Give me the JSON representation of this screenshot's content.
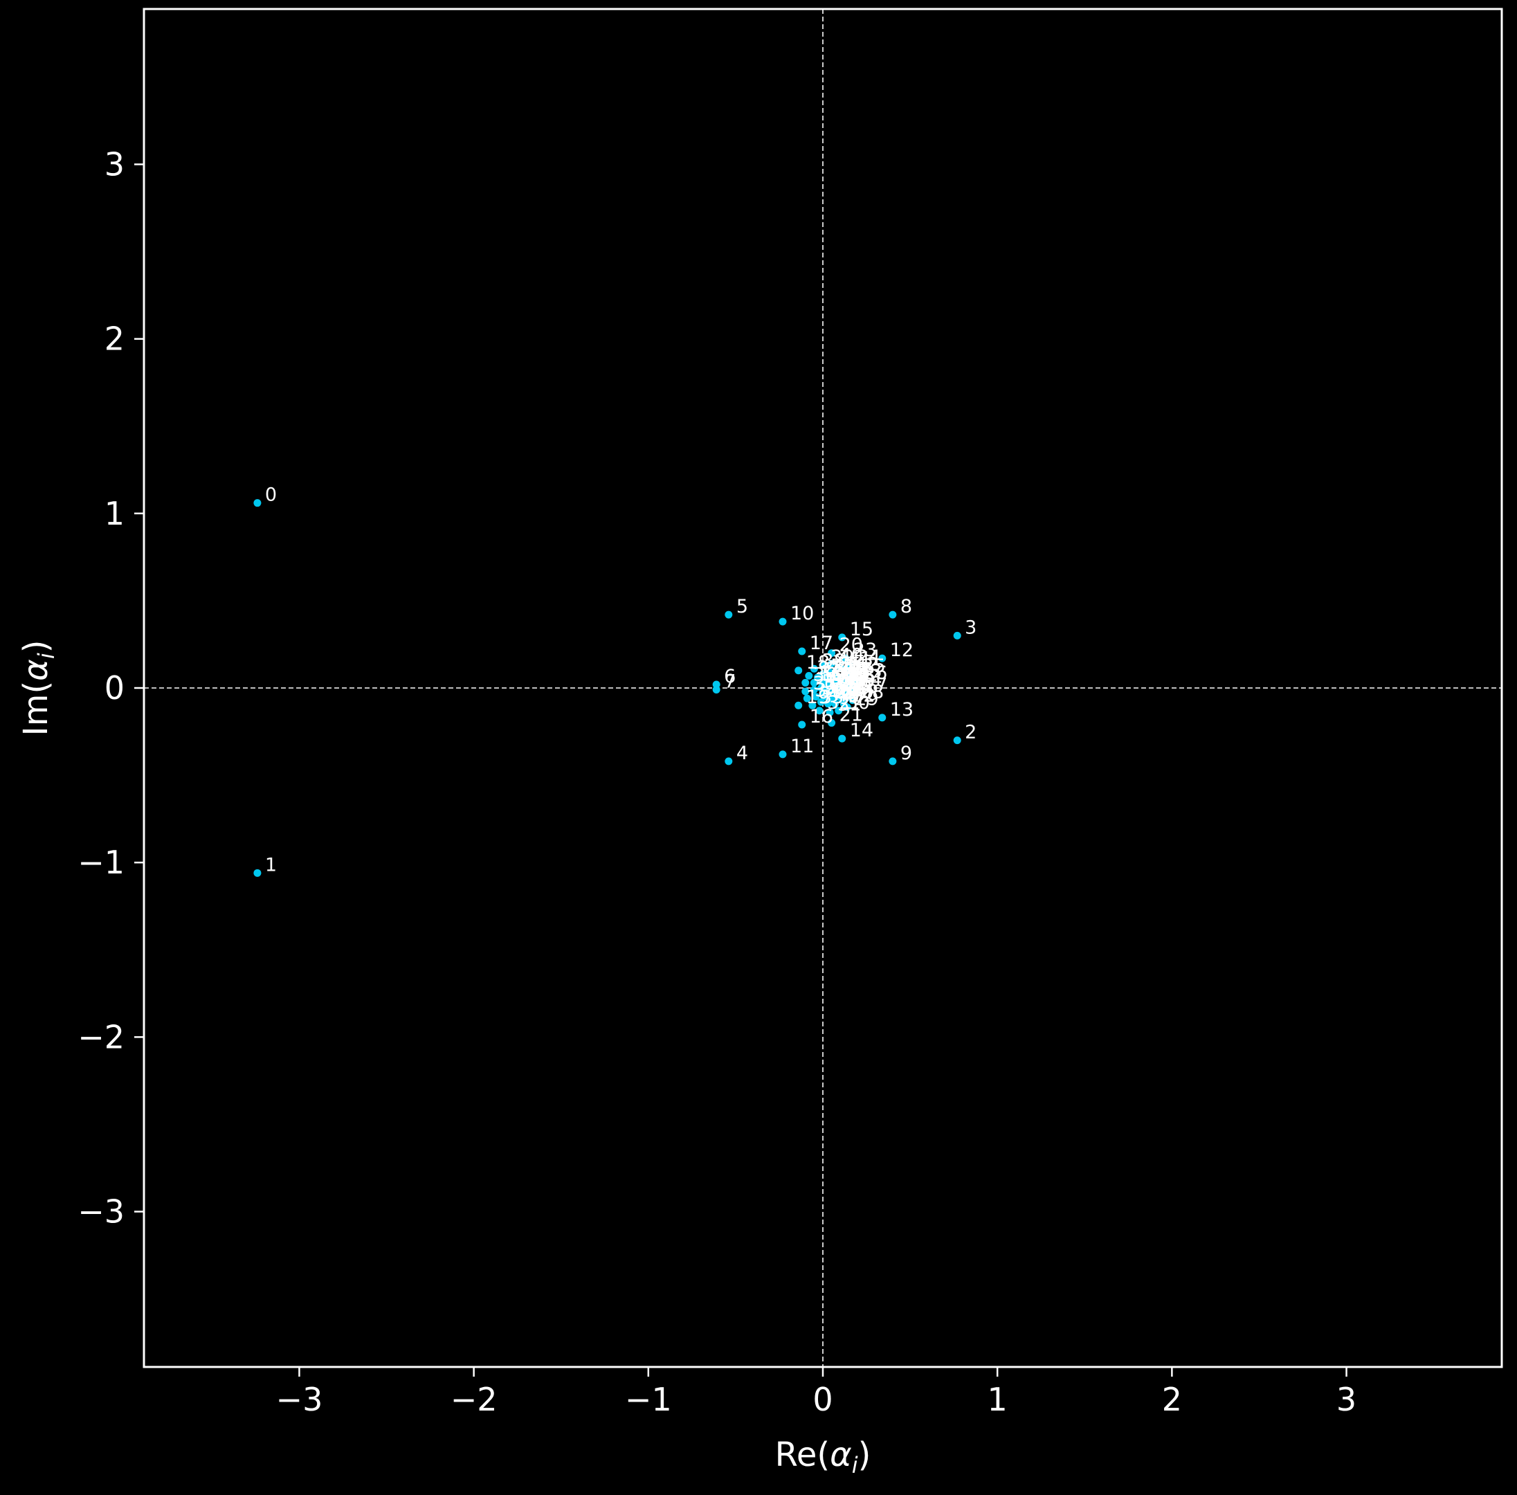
{
  "chart_data": {
    "type": "scatter",
    "xlabel_text": "Re(",
    "xlabel_symbol": "α",
    "xlabel_sub": "i",
    "xlabel_close": ")",
    "ylabel_text": "Im(",
    "ylabel_symbol": "α",
    "ylabel_sub": "i",
    "ylabel_close": ")",
    "xlim": [
      -3.89,
      3.89
    ],
    "ylim": [
      -3.89,
      3.89
    ],
    "x_ticks": [
      -3,
      -2,
      -1,
      0,
      1,
      2,
      3
    ],
    "y_ticks": [
      -3,
      -2,
      -1,
      0,
      1,
      2,
      3
    ],
    "x_tick_labels": [
      "−3",
      "−2",
      "−1",
      "0",
      "1",
      "2",
      "3"
    ],
    "y_tick_labels": [
      "−3",
      "−2",
      "−1",
      "0",
      "1",
      "2",
      "3"
    ],
    "grid": false,
    "zero_lines": true,
    "colors": {
      "background": "#000000",
      "axes": "#ffffff",
      "points": "#00c8f0",
      "labels": "#ffffff",
      "zero_lines": "#ffffff"
    },
    "points": [
      {
        "label": "0",
        "x": -3.24,
        "y": 1.06
      },
      {
        "label": "1",
        "x": -3.24,
        "y": -1.06
      },
      {
        "label": "2",
        "x": 0.77,
        "y": -0.3
      },
      {
        "label": "3",
        "x": 0.77,
        "y": 0.3
      },
      {
        "label": "4",
        "x": -0.54,
        "y": -0.42
      },
      {
        "label": "5",
        "x": -0.54,
        "y": 0.42
      },
      {
        "label": "6",
        "x": -0.61,
        "y": 0.02
      },
      {
        "label": "7",
        "x": -0.61,
        "y": -0.01
      },
      {
        "label": "8",
        "x": 0.4,
        "y": 0.42
      },
      {
        "label": "9",
        "x": 0.4,
        "y": -0.42
      },
      {
        "label": "10",
        "x": -0.23,
        "y": 0.38
      },
      {
        "label": "11",
        "x": -0.23,
        "y": -0.38
      },
      {
        "label": "12",
        "x": 0.34,
        "y": 0.17
      },
      {
        "label": "13",
        "x": 0.34,
        "y": -0.17
      },
      {
        "label": "14",
        "x": 0.11,
        "y": -0.29
      },
      {
        "label": "15",
        "x": 0.11,
        "y": 0.29
      },
      {
        "label": "16",
        "x": -0.12,
        "y": -0.21
      },
      {
        "label": "17",
        "x": -0.12,
        "y": 0.21
      },
      {
        "label": "18",
        "x": -0.14,
        "y": 0.1
      },
      {
        "label": "19",
        "x": -0.14,
        "y": -0.1
      },
      {
        "label": "20",
        "x": 0.05,
        "y": 0.2
      },
      {
        "label": "21",
        "x": 0.05,
        "y": -0.2
      },
      {
        "label": "22",
        "x": 0.12,
        "y": -0.09
      },
      {
        "label": "23",
        "x": 0.13,
        "y": 0.17
      },
      {
        "label": "24",
        "x": 0.15,
        "y": 0.13
      },
      {
        "label": "25",
        "x": 0.18,
        "y": 0.08
      },
      {
        "label": "26",
        "x": 0.19,
        "y": 0.04
      },
      {
        "label": "27",
        "x": 0.19,
        "y": -0.03
      },
      {
        "label": "28",
        "x": 0.17,
        "y": -0.07
      },
      {
        "label": "29",
        "x": 0.14,
        "y": -0.11
      },
      {
        "label": "30",
        "x": 0.09,
        "y": -0.13
      },
      {
        "label": "31",
        "x": 0.04,
        "y": -0.14
      },
      {
        "label": "32",
        "x": -0.02,
        "y": -0.13
      },
      {
        "label": "33",
        "x": -0.06,
        "y": -0.1
      },
      {
        "label": "34",
        "x": -0.09,
        "y": -0.06
      },
      {
        "label": "35",
        "x": -0.1,
        "y": -0.02
      },
      {
        "label": "36",
        "x": -0.1,
        "y": 0.03
      },
      {
        "label": "37",
        "x": -0.08,
        "y": 0.07
      },
      {
        "label": "38",
        "x": -0.05,
        "y": 0.11
      },
      {
        "label": "39",
        "x": 0.0,
        "y": 0.13
      },
      {
        "label": "40",
        "x": 0.05,
        "y": 0.14
      },
      {
        "label": "41",
        "x": 0.1,
        "y": 0.12
      },
      {
        "label": "42",
        "x": 0.14,
        "y": 0.09
      },
      {
        "label": "43",
        "x": 0.16,
        "y": 0.05
      },
      {
        "label": "44",
        "x": 0.16,
        "y": 0.0
      },
      {
        "label": "45",
        "x": 0.14,
        "y": -0.04
      },
      {
        "label": "46",
        "x": 0.11,
        "y": -0.07
      },
      {
        "label": "47",
        "x": 0.07,
        "y": -0.09
      },
      {
        "label": "48",
        "x": 0.03,
        "y": -0.09
      },
      {
        "label": "49",
        "x": -0.01,
        "y": -0.08
      },
      {
        "label": "50",
        "x": -0.04,
        "y": -0.05
      },
      {
        "label": "51",
        "x": -0.05,
        "y": -0.01
      },
      {
        "label": "52",
        "x": -0.05,
        "y": 0.03
      },
      {
        "label": "53",
        "x": -0.03,
        "y": 0.06
      },
      {
        "label": "54",
        "x": 0.0,
        "y": 0.08
      },
      {
        "label": "55",
        "x": 0.04,
        "y": 0.09
      },
      {
        "label": "56",
        "x": 0.07,
        "y": 0.08
      },
      {
        "label": "57",
        "x": 0.1,
        "y": 0.06
      },
      {
        "label": "58",
        "x": 0.12,
        "y": 0.03
      },
      {
        "label": "59",
        "x": 0.12,
        "y": -0.01
      },
      {
        "label": "60",
        "x": 0.1,
        "y": -0.04
      },
      {
        "label": "61",
        "x": 0.08,
        "y": -0.05
      },
      {
        "label": "62",
        "x": 0.05,
        "y": -0.06
      },
      {
        "label": "63",
        "x": 0.02,
        "y": -0.05
      },
      {
        "label": "64",
        "x": 0.0,
        "y": -0.03
      },
      {
        "label": "65",
        "x": -0.01,
        "y": 0.0
      },
      {
        "label": "66",
        "x": 0.0,
        "y": 0.03
      },
      {
        "label": "67",
        "x": 0.02,
        "y": 0.05
      },
      {
        "label": "68",
        "x": 0.05,
        "y": 0.06
      },
      {
        "label": "69",
        "x": 0.07,
        "y": 0.05
      },
      {
        "label": "70",
        "x": 0.09,
        "y": 0.03
      },
      {
        "label": "71",
        "x": 0.09,
        "y": 0.0
      },
      {
        "label": "72",
        "x": 0.08,
        "y": -0.02
      },
      {
        "label": "73",
        "x": 0.06,
        "y": -0.03
      },
      {
        "label": "74",
        "x": 0.04,
        "y": -0.03
      },
      {
        "label": "75",
        "x": 0.03,
        "y": -0.01
      },
      {
        "label": "76",
        "x": 0.03,
        "y": 0.01
      },
      {
        "label": "77",
        "x": 0.04,
        "y": 0.03
      },
      {
        "label": "78",
        "x": 0.06,
        "y": 0.03
      },
      {
        "label": "79",
        "x": 0.07,
        "y": 0.02
      }
    ]
  }
}
